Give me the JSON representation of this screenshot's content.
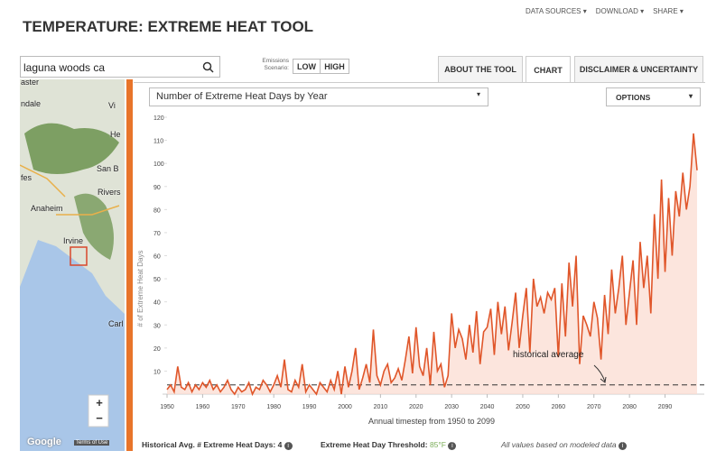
{
  "header": {
    "title": "TEMPERATURE: EXTREME HEAT TOOL",
    "menu": [
      "DATA SOURCES ▾",
      "DOWNLOAD ▾",
      "SHARE ▾"
    ]
  },
  "search": {
    "value": "laguna woods ca"
  },
  "emissions": {
    "label": "Emissions Scenario:",
    "options": [
      "LOW",
      "HIGH"
    ]
  },
  "tabs": [
    "ABOUT THE TOOL",
    "CHART",
    "DISCLAIMER & UNCERTAINTY"
  ],
  "map": {
    "labels": [
      "aster",
      "ndale",
      "Vi",
      "He",
      "San B",
      "fes",
      "Rivers",
      "Anaheim",
      "Irvine",
      "Carl"
    ],
    "zoom_in": "+",
    "zoom_out": "−",
    "credit": "Google",
    "terms": "Terms of Use"
  },
  "chart_data": {
    "type": "line",
    "dropdown": "Number of Extreme Heat Days by Year",
    "options": "OPTIONS",
    "x_label": "Annual timestep from 1950 to 2099",
    "y_label": "# of Extreme Heat Days",
    "annotation": "historical average",
    "historical_average": 4,
    "color": "#e0562a",
    "xlim": [
      1950,
      2099
    ],
    "xticks": [
      1950,
      1960,
      1970,
      1980,
      1990,
      2000,
      2010,
      2020,
      2030,
      2040,
      2050,
      2060,
      2070,
      2080,
      2090
    ],
    "ylim": [
      0,
      120
    ],
    "yticks": [
      10,
      20,
      30,
      40,
      50,
      60,
      70,
      80,
      90,
      100,
      110,
      120
    ],
    "x": [
      1950,
      1951,
      1952,
      1953,
      1954,
      1955,
      1956,
      1957,
      1958,
      1959,
      1960,
      1961,
      1962,
      1963,
      1964,
      1965,
      1966,
      1967,
      1968,
      1969,
      1970,
      1971,
      1972,
      1973,
      1974,
      1975,
      1976,
      1977,
      1978,
      1979,
      1980,
      1981,
      1982,
      1983,
      1984,
      1985,
      1986,
      1987,
      1988,
      1989,
      1990,
      1991,
      1992,
      1993,
      1994,
      1995,
      1996,
      1997,
      1998,
      1999,
      2000,
      2001,
      2002,
      2003,
      2004,
      2005,
      2006,
      2007,
      2008,
      2009,
      2010,
      2011,
      2012,
      2013,
      2014,
      2015,
      2016,
      2017,
      2018,
      2019,
      2020,
      2021,
      2022,
      2023,
      2024,
      2025,
      2026,
      2027,
      2028,
      2029,
      2030,
      2031,
      2032,
      2033,
      2034,
      2035,
      2036,
      2037,
      2038,
      2039,
      2040,
      2041,
      2042,
      2043,
      2044,
      2045,
      2046,
      2047,
      2048,
      2049,
      2050,
      2051,
      2052,
      2053,
      2054,
      2055,
      2056,
      2057,
      2058,
      2059,
      2060,
      2061,
      2062,
      2063,
      2064,
      2065,
      2066,
      2067,
      2068,
      2069,
      2070,
      2071,
      2072,
      2073,
      2074,
      2075,
      2076,
      2077,
      2078,
      2079,
      2080,
      2081,
      2082,
      2083,
      2084,
      2085,
      2086,
      2087,
      2088,
      2089,
      2090,
      2091,
      2092,
      2093,
      2094,
      2095,
      2096,
      2097,
      2098,
      2099
    ],
    "values": [
      2,
      4,
      1,
      12,
      3,
      2,
      5,
      1,
      4,
      2,
      5,
      3,
      6,
      2,
      4,
      1,
      3,
      6,
      2,
      0,
      3,
      1,
      2,
      5,
      0,
      3,
      2,
      6,
      4,
      1,
      4,
      8,
      3,
      15,
      2,
      1,
      6,
      3,
      13,
      1,
      4,
      2,
      0,
      5,
      3,
      1,
      6,
      2,
      10,
      0,
      12,
      3,
      10,
      20,
      2,
      7,
      13,
      5,
      28,
      8,
      4,
      10,
      13,
      5,
      7,
      11,
      6,
      15,
      25,
      9,
      29,
      12,
      8,
      20,
      4,
      27,
      10,
      13,
      3,
      8,
      35,
      20,
      28,
      24,
      15,
      30,
      18,
      36,
      13,
      27,
      29,
      37,
      17,
      40,
      26,
      38,
      19,
      31,
      44,
      20,
      34,
      46,
      18,
      50,
      38,
      42,
      35,
      44,
      41,
      46,
      16,
      48,
      25,
      57,
      38,
      60,
      13,
      34,
      30,
      25,
      40,
      33,
      15,
      43,
      26,
      54,
      35,
      46,
      60,
      30,
      44,
      58,
      30,
      66,
      46,
      60,
      35,
      78,
      50,
      93,
      53,
      85,
      60,
      88,
      77,
      96,
      80,
      90,
      113,
      97
    ]
  },
  "footer": {
    "historical_avg_label": "Historical Avg. # Extreme Heat Days:",
    "threshold_label": "Extreme Heat Day Threshold:",
    "threshold_value": "85°F",
    "note": "All values based on modeled data"
  }
}
